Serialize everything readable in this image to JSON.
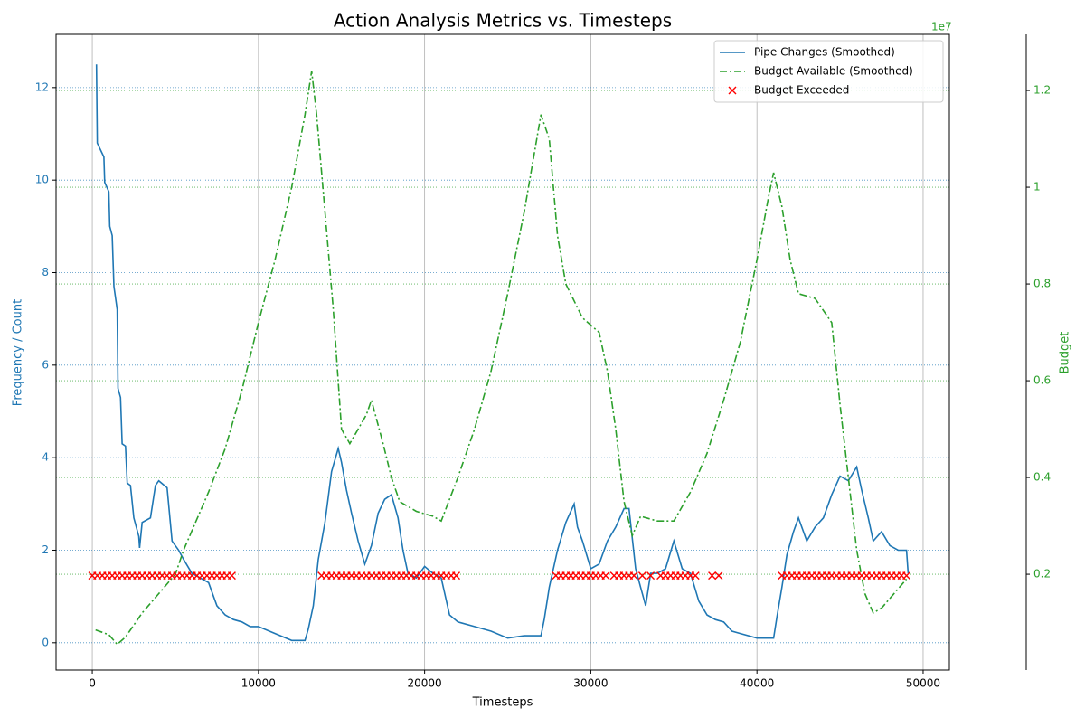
{
  "chart_data": {
    "type": "line",
    "title": "Action Analysis Metrics vs. Timesteps",
    "x_label": "Timesteps",
    "y_label": "Frequency / Count",
    "y2_label": "Budget",
    "y2_offset_label": "1e7",
    "xlim": [
      -2180,
      51580
    ],
    "xticks": [
      0,
      10000,
      20000,
      30000,
      40000,
      50000
    ],
    "ylim": [
      -0.59,
      13.15
    ],
    "yticks": [
      0,
      2,
      4,
      6,
      8,
      10,
      12
    ],
    "y2lim": [
      0.002,
      1.316
    ],
    "y2ticks": [
      0.2,
      0.4,
      0.6,
      0.8,
      1.0,
      1.2
    ],
    "grid": true,
    "legend": "upper right",
    "series": [
      {
        "name": "Pipe Changes (Smoothed)",
        "color": "#1f77b4",
        "style": "solid",
        "axis": "y",
        "x": [
          250,
          300,
          700,
          750,
          1000,
          1050,
          1200,
          1300,
          1500,
          1550,
          1700,
          1800,
          2000,
          2100,
          2300,
          2500,
          2800,
          2850,
          3000,
          3500,
          3800,
          4000,
          4500,
          4800,
          5200,
          5500,
          6000,
          6500,
          7000,
          7500,
          8000,
          8500,
          9000,
          9500,
          10000,
          11000,
          12000,
          12800,
          13000,
          13300,
          13600,
          14000,
          14400,
          14800,
          15000,
          15300,
          15600,
          16000,
          16400,
          16800,
          17200,
          17600,
          18000,
          18400,
          18700,
          19000,
          19500,
          20000,
          20500,
          21000,
          21500,
          22000,
          23000,
          24000,
          25000,
          26000,
          27000,
          27200,
          27500,
          28000,
          28500,
          29000,
          29200,
          29500,
          30000,
          30500,
          31000,
          31500,
          32000,
          32300,
          32700,
          33000,
          33300,
          33600,
          34000,
          34500,
          35000,
          35500,
          36000,
          36500,
          37000,
          37500,
          38000,
          38500,
          39000,
          40000,
          41000,
          41200,
          41500,
          41800,
          42200,
          42500,
          43000,
          43500,
          44000,
          44500,
          45000,
          45500,
          46000,
          46300,
          46700,
          47000,
          47500,
          48000,
          48500,
          49000,
          49100
        ],
        "values": [
          12.5,
          10.8,
          10.5,
          9.95,
          9.75,
          9.0,
          8.8,
          7.7,
          7.2,
          5.5,
          5.3,
          4.3,
          4.25,
          3.45,
          3.4,
          2.7,
          2.3,
          2.05,
          2.6,
          2.7,
          3.4,
          3.5,
          3.35,
          2.2,
          2.0,
          1.8,
          1.5,
          1.4,
          1.3,
          0.8,
          0.6,
          0.5,
          0.45,
          0.35,
          0.35,
          0.2,
          0.05,
          0.05,
          0.3,
          0.8,
          1.8,
          2.6,
          3.7,
          4.2,
          3.9,
          3.3,
          2.8,
          2.2,
          1.7,
          2.1,
          2.8,
          3.1,
          3.2,
          2.7,
          2.0,
          1.5,
          1.4,
          1.65,
          1.5,
          1.4,
          0.6,
          0.45,
          0.35,
          0.25,
          0.1,
          0.15,
          0.15,
          0.5,
          1.2,
          2.0,
          2.6,
          3.0,
          2.5,
          2.2,
          1.6,
          1.7,
          2.2,
          2.5,
          2.9,
          2.9,
          1.6,
          1.2,
          0.8,
          1.5,
          1.5,
          1.6,
          2.2,
          1.6,
          1.5,
          0.9,
          0.6,
          0.5,
          0.45,
          0.25,
          0.2,
          0.1,
          0.1,
          0.55,
          1.2,
          1.9,
          2.4,
          2.7,
          2.2,
          2.5,
          2.7,
          3.2,
          3.6,
          3.5,
          3.8,
          3.3,
          2.7,
          2.2,
          2.4,
          2.1,
          2.0,
          2.0,
          1.5
        ]
      },
      {
        "name": "Budget Available (Smoothed)",
        "color": "#2ca02c",
        "style": "dashdot",
        "axis": "y2",
        "x": [
          200,
          1000,
          1500,
          2000,
          3000,
          4000,
          5000,
          5500,
          6000,
          7000,
          8000,
          9000,
          10000,
          11000,
          12000,
          12800,
          13200,
          13500,
          14000,
          14500,
          15000,
          15500,
          16000,
          16500,
          16800,
          17500,
          18000,
          18500,
          19500,
          20500,
          21000,
          22000,
          23000,
          24000,
          25000,
          26000,
          26500,
          27000,
          27500,
          28000,
          28500,
          29500,
          30500,
          31000,
          31500,
          32000,
          32500,
          33000,
          34000,
          35000,
          36000,
          37000,
          38000,
          39000,
          40000,
          40700,
          41000,
          41500,
          42000,
          42500,
          43500,
          44500,
          45000,
          45500,
          46000,
          46500,
          47000,
          47500,
          48500,
          49000
        ],
        "values": [
          0.085,
          0.075,
          0.055,
          0.07,
          0.12,
          0.16,
          0.2,
          0.25,
          0.29,
          0.37,
          0.46,
          0.58,
          0.72,
          0.85,
          1.0,
          1.15,
          1.24,
          1.15,
          0.95,
          0.75,
          0.5,
          0.47,
          0.5,
          0.53,
          0.56,
          0.47,
          0.4,
          0.35,
          0.33,
          0.32,
          0.31,
          0.4,
          0.5,
          0.62,
          0.78,
          0.95,
          1.05,
          1.15,
          1.1,
          0.9,
          0.8,
          0.73,
          0.7,
          0.62,
          0.5,
          0.35,
          0.28,
          0.32,
          0.31,
          0.31,
          0.37,
          0.45,
          0.56,
          0.68,
          0.85,
          0.98,
          1.03,
          0.96,
          0.85,
          0.78,
          0.77,
          0.72,
          0.55,
          0.4,
          0.25,
          0.16,
          0.12,
          0.13,
          0.17,
          0.19
        ]
      },
      {
        "name": "Budget Exceeded",
        "color": "#ff0000",
        "style": "marker-x",
        "axis": "y",
        "x": [
          0,
          300,
          600,
          900,
          1200,
          1500,
          1800,
          2100,
          2400,
          2700,
          3000,
          3300,
          3600,
          3900,
          4200,
          4500,
          4800,
          5100,
          5400,
          5700,
          6000,
          6300,
          6600,
          6900,
          7200,
          7500,
          7800,
          8100,
          8400,
          13800,
          14100,
          14400,
          14700,
          15000,
          15300,
          15600,
          15900,
          16200,
          16500,
          16800,
          17100,
          17400,
          17700,
          18000,
          18300,
          18600,
          18900,
          19200,
          19500,
          19800,
          20100,
          20400,
          20700,
          21000,
          21300,
          21600,
          21900,
          27900,
          28200,
          28500,
          28800,
          29100,
          29400,
          29700,
          30000,
          30300,
          30600,
          30900,
          31400,
          31700,
          32000,
          32300,
          32600,
          33100,
          33600,
          34200,
          34500,
          34800,
          35100,
          35400,
          35700,
          36000,
          36300,
          37300,
          37700,
          41500,
          41800,
          42100,
          42400,
          42700,
          43000,
          43300,
          43600,
          43900,
          44200,
          44500,
          44800,
          45100,
          45400,
          45700,
          46000,
          46300,
          46600,
          46900,
          47200,
          47500,
          47800,
          48100,
          48400,
          48700,
          49000
        ],
        "values": [
          1.45,
          1.45,
          1.45,
          1.45,
          1.45,
          1.45,
          1.45,
          1.45,
          1.45,
          1.45,
          1.45,
          1.45,
          1.45,
          1.45,
          1.45,
          1.45,
          1.45,
          1.45,
          1.45,
          1.45,
          1.45,
          1.45,
          1.45,
          1.45,
          1.45,
          1.45,
          1.45,
          1.45,
          1.45,
          1.45,
          1.45,
          1.45,
          1.45,
          1.45,
          1.45,
          1.45,
          1.45,
          1.45,
          1.45,
          1.45,
          1.45,
          1.45,
          1.45,
          1.45,
          1.45,
          1.45,
          1.45,
          1.45,
          1.45,
          1.45,
          1.45,
          1.45,
          1.45,
          1.45,
          1.45,
          1.45,
          1.45,
          1.45,
          1.45,
          1.45,
          1.45,
          1.45,
          1.45,
          1.45,
          1.45,
          1.45,
          1.45,
          1.45,
          1.45,
          1.45,
          1.45,
          1.45,
          1.45,
          1.45,
          1.45,
          1.45,
          1.45,
          1.45,
          1.45,
          1.45,
          1.45,
          1.45,
          1.45,
          1.45,
          1.45,
          1.45,
          1.45,
          1.45,
          1.45,
          1.45,
          1.45,
          1.45,
          1.45,
          1.45,
          1.45,
          1.45,
          1.45,
          1.45,
          1.45,
          1.45,
          1.45,
          1.45,
          1.45,
          1.45,
          1.45,
          1.45,
          1.45,
          1.45,
          1.45,
          1.45,
          1.45
        ]
      }
    ]
  }
}
